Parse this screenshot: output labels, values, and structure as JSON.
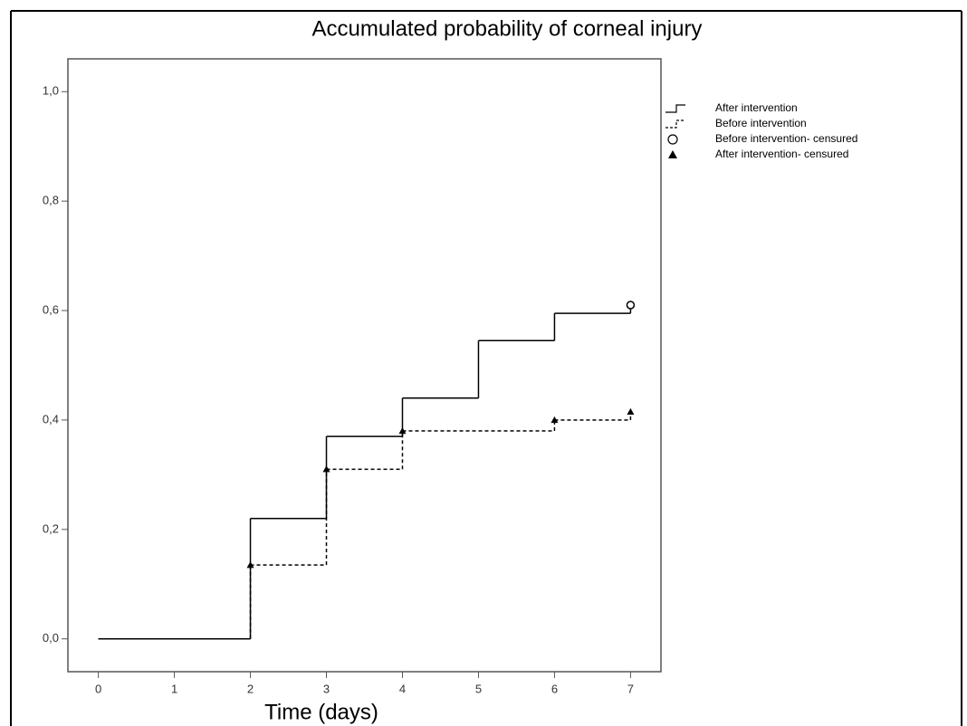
{
  "chart_data": {
    "type": "step",
    "title": "Accumulated probability of corneal injury",
    "x_label": "Time (days)",
    "xlim": [
      -0.4,
      7.4
    ],
    "ylim": [
      -0.06,
      1.06
    ],
    "xticks": [
      0,
      1,
      2,
      3,
      4,
      5,
      6,
      7
    ],
    "yticks": [
      {
        "value": 0,
        "label": "0,0"
      },
      {
        "value": 0.2,
        "label": "0,2"
      },
      {
        "value": 0.4,
        "label": "0,4"
      },
      {
        "value": 0.6,
        "label": "0,6"
      },
      {
        "value": 0.8,
        "label": "0,8"
      },
      {
        "value": 1.0,
        "label": "1,0"
      }
    ],
    "series": [
      {
        "name": "After intervention",
        "style": "solid",
        "color": "#000000",
        "x": [
          0,
          2,
          3,
          4,
          5,
          6,
          7
        ],
        "values": [
          0,
          0.22,
          0.37,
          0.44,
          0.545,
          0.595,
          0.61
        ]
      },
      {
        "name": "Before intervention",
        "style": "dashed",
        "color": "#000000",
        "x": [
          0,
          2,
          3,
          4,
          6,
          7
        ],
        "values": [
          0,
          0.135,
          0.31,
          0.38,
          0.4,
          0.415
        ]
      },
      {
        "name": "Before intervention- censured",
        "style": "circle",
        "color": "#000000",
        "x": [
          7
        ],
        "values": [
          0.61
        ]
      },
      {
        "name": "After intervention- censured",
        "style": "triangle",
        "color": "#000000",
        "x": [
          2,
          3,
          4,
          6,
          7
        ],
        "values": [
          0.135,
          0.31,
          0.38,
          0.4,
          0.415
        ]
      }
    ]
  }
}
